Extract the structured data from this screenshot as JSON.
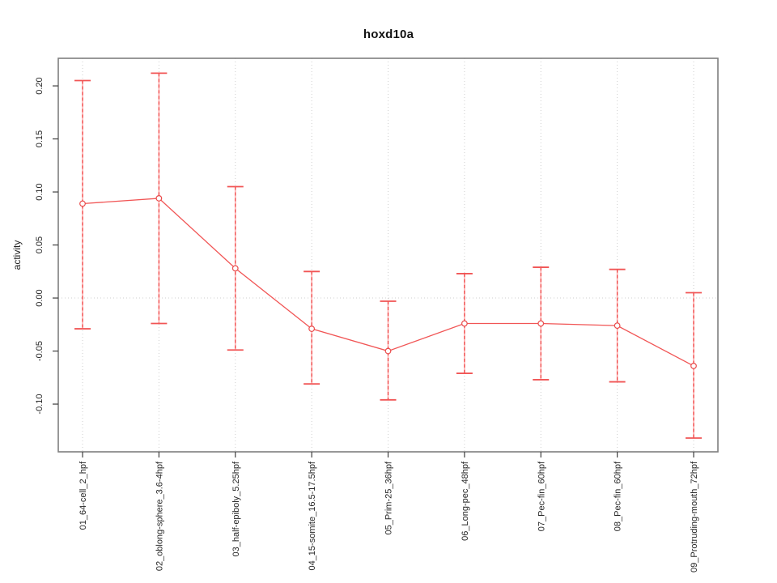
{
  "figure": {
    "background": "#ffffff"
  },
  "chart_data": {
    "type": "line",
    "title": "hoxd10a",
    "xlabel": "",
    "ylabel": "activity",
    "legend": "none",
    "grid": "vertical dotted gridlines at each category plus dotted horizontal line at 0",
    "categories": [
      "01_64-cell_2_hpf",
      "02_oblong-sphere_3.6-4hpf",
      "03_half-epiboly_5.25hpf",
      "04_15-somite_16.5-17.5hpf",
      "05_Prim-25_36hpf",
      "06_Long-pec_48hpf",
      "07_Pec-fin_60hpf",
      "08_Pec-fin_60hpf",
      "09_Protruding-mouth_72hpf"
    ],
    "series": [
      {
        "name": "activity",
        "values": [
          0.089,
          0.094,
          0.028,
          -0.029,
          -0.05,
          -0.024,
          -0.024,
          -0.026,
          -0.064
        ],
        "error_low": [
          -0.029,
          -0.024,
          -0.049,
          -0.081,
          -0.096,
          -0.071,
          -0.077,
          -0.079,
          -0.132
        ],
        "error_high": [
          0.205,
          0.212,
          0.105,
          0.025,
          -0.003,
          0.023,
          0.029,
          0.027,
          0.005
        ]
      }
    ],
    "yticks": [
      -0.1,
      -0.05,
      0.0,
      0.05,
      0.1,
      0.15,
      0.2
    ],
    "ytick_labels": [
      "-0.10",
      "-0.05",
      "0.00",
      "0.05",
      "0.10",
      "0.15",
      "0.20"
    ],
    "ylim": [
      -0.145,
      0.226
    ],
    "zero_line": 0,
    "colors": {
      "point_stroke": "#e94b4b",
      "line": "#f15555",
      "errorbar_dash": "#ee4343",
      "errorbar_light": "#ffadad",
      "cap": "#f15555",
      "grid": "#cfcfcf",
      "frame": "#7f7f7f",
      "tick": "#404040",
      "text": "#262626",
      "background": "#ffffff"
    }
  }
}
